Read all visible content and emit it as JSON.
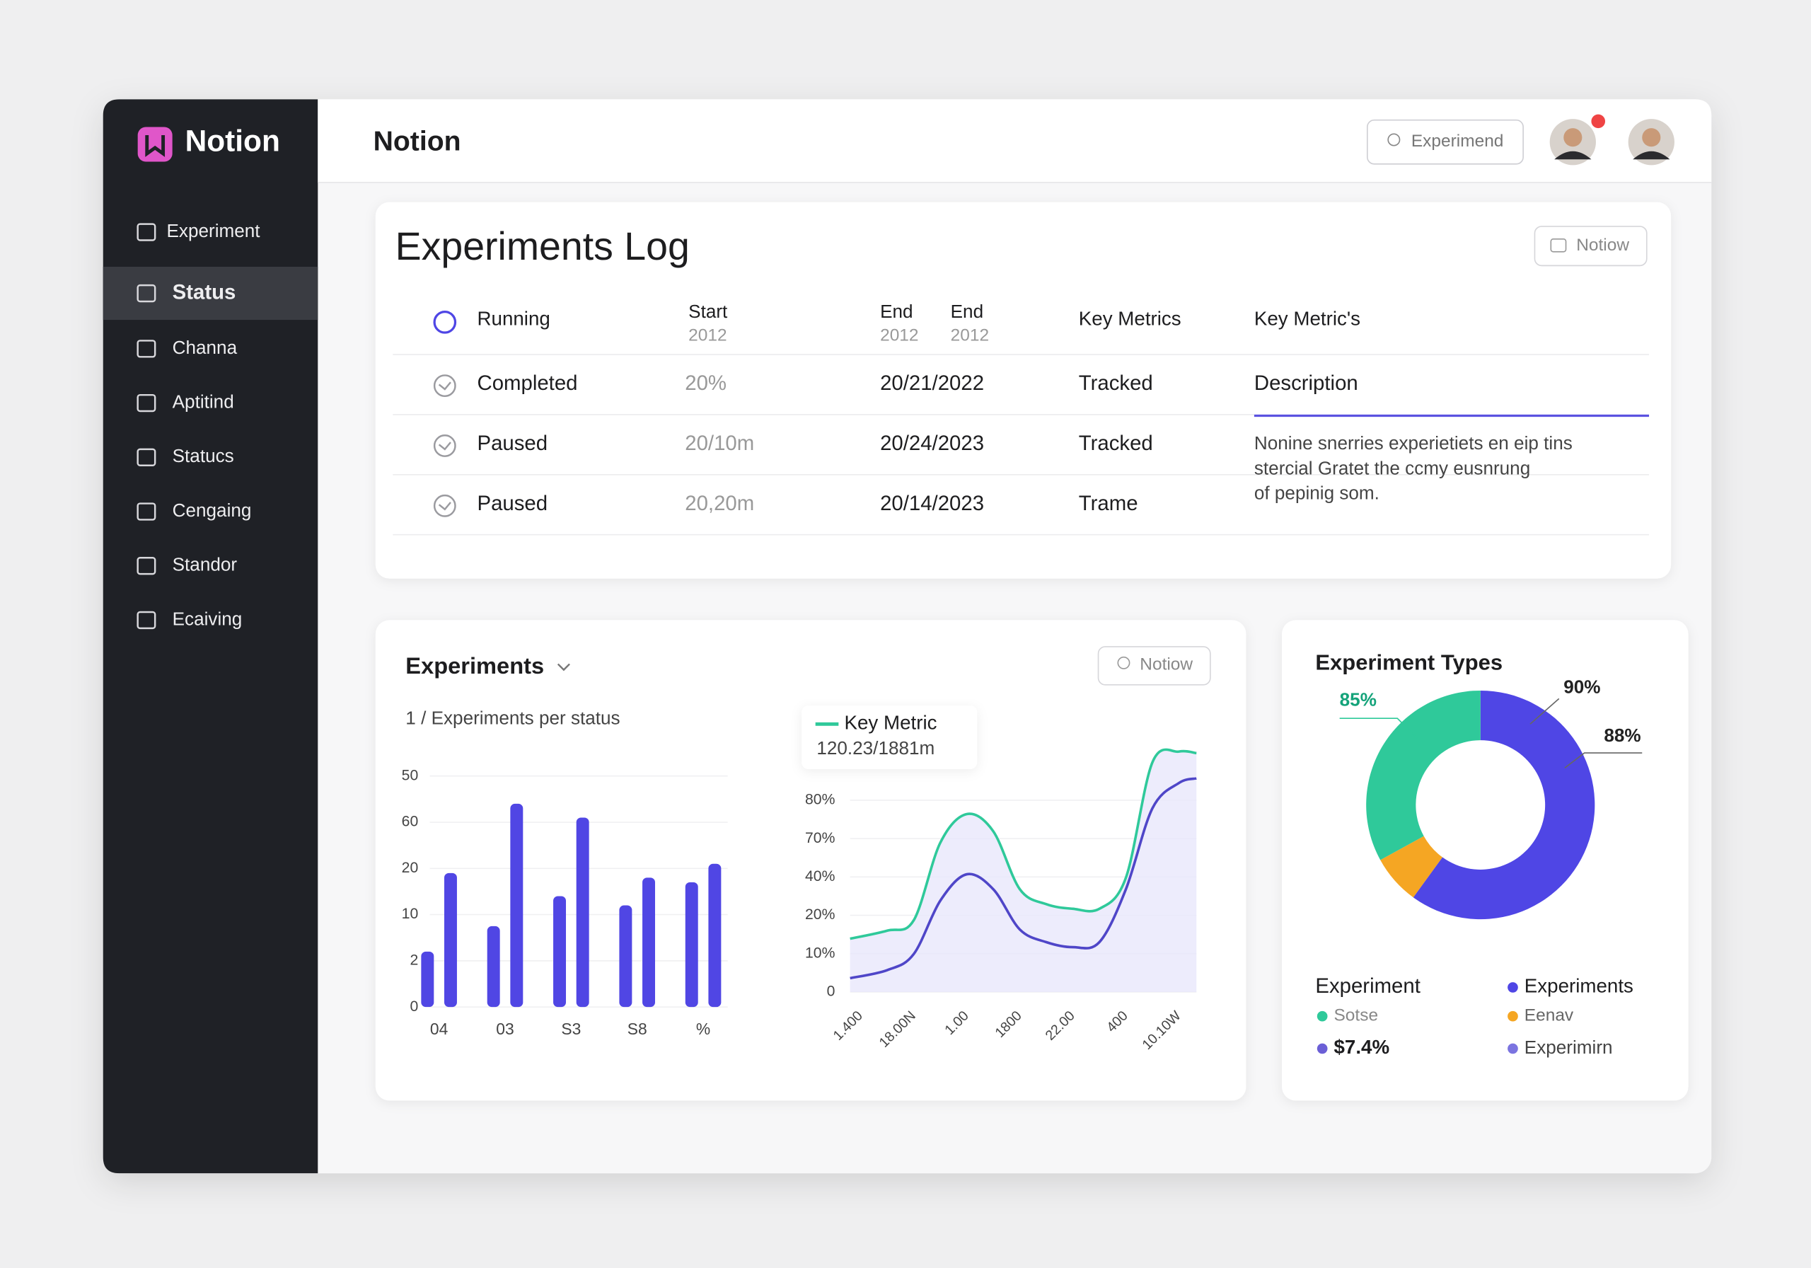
{
  "sidebar": {
    "brand": "Notion",
    "items": [
      "Experiment",
      "Status",
      "Channa",
      "Aptitind",
      "Statucs",
      "Cengaing",
      "Standor",
      "Ecaiving"
    ],
    "active": 1
  },
  "header": {
    "title": "Notion",
    "button": "Experimend"
  },
  "log": {
    "title": "Experiments Log",
    "button": "Notiow",
    "columns": [
      {
        "label": "Running"
      },
      {
        "label": "Start",
        "sub": "2012"
      },
      {
        "label": "End",
        "sub": "2012"
      },
      {
        "label": "End",
        "sub": "2012"
      },
      {
        "label": "Key Metrics"
      },
      {
        "label": "Key Metric's"
      }
    ],
    "rows": [
      [
        "Completed",
        "20%",
        "20/21/2022",
        "Tracked"
      ],
      [
        "Paused",
        "20/10m",
        "20/24/2023",
        "Tracked"
      ],
      [
        "Paused",
        "20,20m",
        "20/14/2023",
        "Trame"
      ]
    ],
    "description": {
      "title": "Description",
      "lines": [
        "Nonine snerries experietiets en eip tins",
        "stercial Gratet the ccmy eusnrung",
        "of pepinig som."
      ]
    }
  },
  "chart_data": [
    {
      "type": "bar",
      "title": "Experiments",
      "subtitle": "1 / Experiments per status",
      "button": "Notiow",
      "categories": [
        "04",
        "03",
        "S3",
        "S8",
        "%"
      ],
      "series": [
        {
          "color": "#5046e4",
          "values": [
            1.2,
            1.75,
            2.4,
            2.2,
            2.7
          ]
        },
        {
          "color": "#5046e4",
          "values": [
            2.9,
            4.4,
            4.1,
            2.8,
            3.1
          ]
        }
      ],
      "ylim": [
        0,
        5
      ],
      "yticks": [
        {
          "value": 0,
          "label": "0"
        },
        {
          "value": 1,
          "label": "2"
        },
        {
          "value": 2,
          "label": "10"
        },
        {
          "value": 3,
          "label": "20"
        },
        {
          "value": 4,
          "label": "60"
        },
        {
          "value": 5,
          "label": "50"
        }
      ],
      "grid": true
    },
    {
      "type": "line",
      "legend": "Key Metric",
      "subtitle": "120.23/1881m",
      "x": [
        -0.2,
        0.5,
        1,
        1.5,
        2,
        2.5,
        3,
        3.5,
        4,
        4.5,
        5,
        5.5,
        6,
        6.33
      ],
      "series": [
        {
          "color": "#2fc99a",
          "values": [
            1.39,
            1.6,
            1.87,
            3.89,
            4.64,
            4.19,
            2.68,
            2.29,
            2.17,
            2.17,
            2.98,
            5.99,
            6.27,
            6.23
          ]
        },
        {
          "color": "#4f46c8",
          "values": [
            0.36,
            0.57,
            0.99,
            2.38,
            3.07,
            2.68,
            1.63,
            1.3,
            1.17,
            1.3,
            2.68,
            4.79,
            5.45,
            5.57
          ]
        }
      ],
      "area_color": "#e9e7fb",
      "xlim": [
        -0.2,
        6.33
      ],
      "xticks": [
        {
          "value": 0,
          "label": "1.400"
        },
        {
          "value": 1,
          "label": "18.00N"
        },
        {
          "value": 2,
          "label": "1.00"
        },
        {
          "value": 3,
          "label": "1800"
        },
        {
          "value": 4,
          "label": "22.00"
        },
        {
          "value": 5,
          "label": "400"
        },
        {
          "value": 6,
          "label": "10.10W"
        }
      ],
      "ylim": [
        0,
        6.3
      ],
      "yticks": [
        {
          "value": 0,
          "label": "0"
        },
        {
          "value": 1,
          "label": "10%"
        },
        {
          "value": 2,
          "label": "20%"
        },
        {
          "value": 3,
          "label": "40%"
        },
        {
          "value": 4,
          "label": "70%"
        },
        {
          "value": 5,
          "label": "80%"
        }
      ],
      "grid": true
    },
    {
      "type": "donut",
      "title": "Experiment Types",
      "values": [
        60,
        7,
        33
      ],
      "colors": [
        "#4f46e5",
        "#f5a623",
        "#2fc99a"
      ],
      "annotations": [
        {
          "text": "85%",
          "color": "#14a37a"
        },
        {
          "text": "90%",
          "color": "#222222"
        },
        {
          "text": "88%",
          "color": "#222222"
        }
      ],
      "legend_title": "Experiment",
      "legend": [
        {
          "label": "Sotse",
          "color": "#2fc99a"
        },
        {
          "label": "$7.4%",
          "color": "#6b5fd6"
        },
        {
          "label": "Experiments",
          "color": "#4f46e5"
        },
        {
          "label": "Eenav",
          "color": "#f5a623"
        },
        {
          "label": "Experimirn",
          "color": "#7b74e0"
        }
      ]
    }
  ]
}
